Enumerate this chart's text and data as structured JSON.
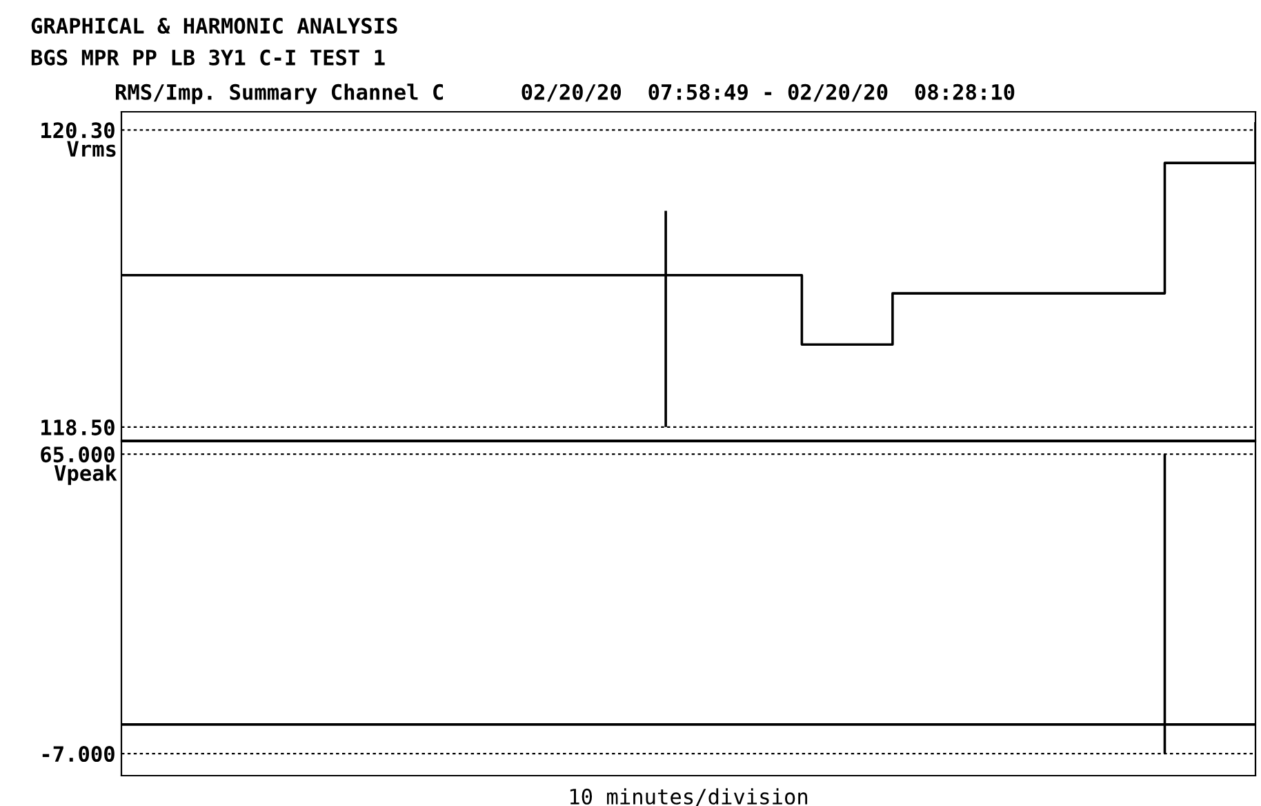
{
  "chart_data": [
    {
      "type": "step",
      "title": "GRAPHICAL & HARMONIC ANALYSIS",
      "subtitle": "BGS MPR PP LB 3Y1 C-I TEST 1",
      "annotations": [
        "RMS/Imp. Summary Channel C      02/20/20  07:58:49 - 02/20/20  08:28:10"
      ],
      "ylabel": "Vrms",
      "categories": [
        null,
        null,
        null,
        null,
        null,
        null,
        null,
        null,
        null,
        null,
        null,
        null,
        null,
        null,
        null,
        null,
        null,
        null,
        null,
        null,
        null,
        null,
        null,
        null,
        null,
        null
      ],
      "series": [
        {
          "color": "#000000",
          "values": [
            119.42,
            119.42,
            119.42,
            119.42,
            119.42,
            119.42,
            119.42,
            119.42,
            119.42,
            119.42,
            119.42,
            119.42,
            119.42,
            119.42,
            119.42,
            119.0,
            119.0,
            119.31,
            119.31,
            119.31,
            119.31,
            119.31,
            119.31,
            120.1,
            120.1,
            120.34
          ],
          "errors": [
            null,
            null,
            null,
            null,
            null,
            null,
            null,
            null,
            null,
            null,
            null,
            null,
            [
              118.5,
              119.81
            ],
            null,
            null,
            null,
            null,
            null,
            null,
            null,
            null,
            null,
            null,
            null,
            null,
            null
          ]
        }
      ],
      "ylim": [
        118.42,
        120.41
      ],
      "yticks": [
        {
          "value": 118.5,
          "label": "118.50"
        },
        {
          "value": 120.3,
          "label": "120.30"
        }
      ],
      "grid": "y",
      "line_style": "solid",
      "marker": "none"
    },
    {
      "type": "step",
      "ylabel": "Vpeak",
      "xlabel": "10 minutes/division",
      "categories": [
        null,
        null,
        null,
        null,
        null,
        null,
        null,
        null,
        null,
        null,
        null,
        null,
        null,
        null,
        null,
        null,
        null,
        null,
        null,
        null,
        null,
        null,
        null,
        null,
        null,
        null
      ],
      "series": [
        {
          "color": "#000000",
          "values": [
            0,
            0,
            0,
            0,
            0,
            0,
            0,
            0,
            0,
            0,
            0,
            0,
            0,
            0,
            0,
            0,
            0,
            0,
            0,
            0,
            0,
            0,
            0,
            0,
            0,
            0
          ],
          "errors": [
            null,
            null,
            null,
            null,
            null,
            null,
            null,
            null,
            null,
            null,
            null,
            null,
            null,
            null,
            null,
            null,
            null,
            null,
            null,
            null,
            null,
            null,
            null,
            [
              -7,
              65
            ],
            null,
            null
          ]
        }
      ],
      "ylim": [
        -12.3,
        68.0
      ],
      "yticks": [
        {
          "value": -7,
          "label": "-7.000"
        },
        {
          "value": 65,
          "label": "65.000"
        }
      ],
      "ref_lines": [
        {
          "axis": "y",
          "value": 65,
          "color": "#000000",
          "line_style": "dotted"
        },
        {
          "axis": "y",
          "value": -7,
          "color": "#000000",
          "line_style": "dotted"
        }
      ],
      "line_style": "solid",
      "marker": "none"
    }
  ]
}
